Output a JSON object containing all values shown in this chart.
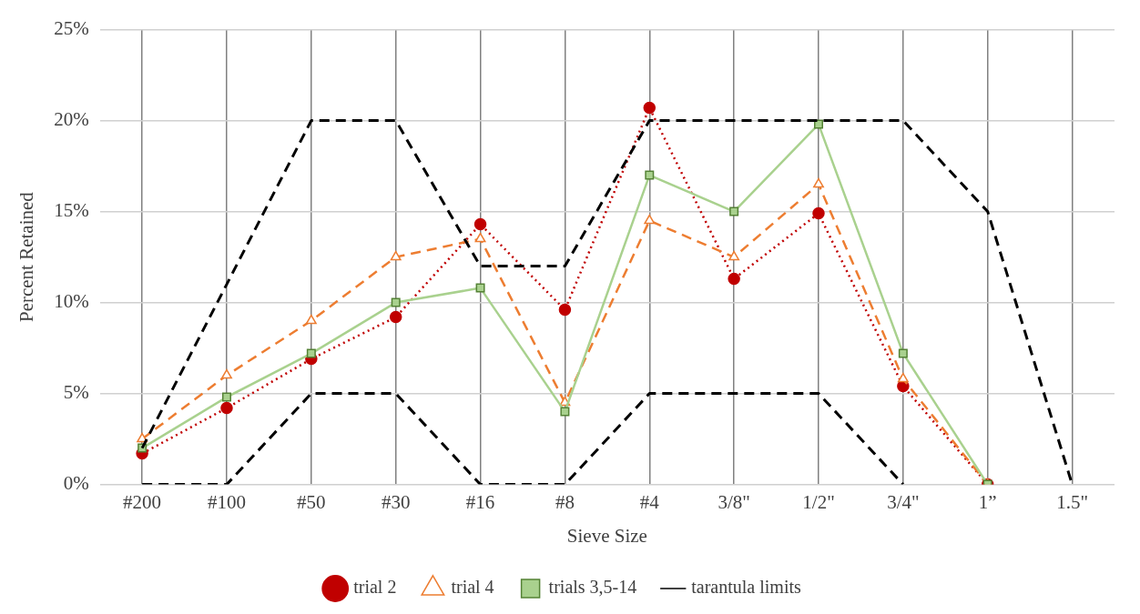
{
  "chart_data": {
    "type": "line",
    "xlabel": "Sieve Size",
    "ylabel": "Percent Retained",
    "categories": [
      "#200",
      "#100",
      "#50",
      "#30",
      "#16",
      "#8",
      "#4",
      "3/8\"",
      "1/2\"",
      "3/4\"",
      "1”",
      "1.5\""
    ],
    "ylim": [
      0,
      25
    ],
    "yticks": [
      {
        "value": 0,
        "label": "0%"
      },
      {
        "value": 5,
        "label": "5%"
      },
      {
        "value": 10,
        "label": "10%"
      },
      {
        "value": 15,
        "label": "15%"
      },
      {
        "value": 20,
        "label": "20%"
      },
      {
        "value": 25,
        "label": "25%"
      }
    ],
    "grid": true,
    "legend": "bottom",
    "series": [
      {
        "name": "trial 2",
        "color": "#c00000",
        "marker": "circle",
        "line_style": "dotted",
        "values": [
          1.7,
          4.2,
          6.9,
          9.2,
          14.3,
          9.6,
          20.7,
          11.3,
          14.9,
          5.4,
          0,
          null
        ]
      },
      {
        "name": "trial 4",
        "color": "#ed7d31",
        "marker": "triangle",
        "line_style": "dashed",
        "values": [
          2.5,
          6.0,
          9.0,
          12.5,
          13.5,
          4.5,
          14.5,
          12.5,
          16.5,
          5.8,
          0,
          null
        ]
      },
      {
        "name": "trials 3,5-14",
        "color": "#a9d18e",
        "marker": "square",
        "line_style": "solid",
        "values": [
          2.0,
          4.8,
          7.2,
          10.0,
          10.8,
          4.0,
          17.0,
          15.0,
          19.8,
          7.2,
          0,
          null
        ]
      },
      {
        "name": "tarantula limits",
        "color": "#000000",
        "marker": "none",
        "line_style": "dashed",
        "values": [
          2,
          11,
          20,
          20,
          12,
          12,
          20,
          20,
          20,
          20,
          15,
          0
        ]
      },
      {
        "color": "#000000",
        "marker": "none",
        "line_style": "dashed",
        "values": [
          0,
          0,
          5,
          5,
          0,
          0,
          5,
          5,
          5,
          0,
          null,
          null
        ]
      }
    ]
  }
}
